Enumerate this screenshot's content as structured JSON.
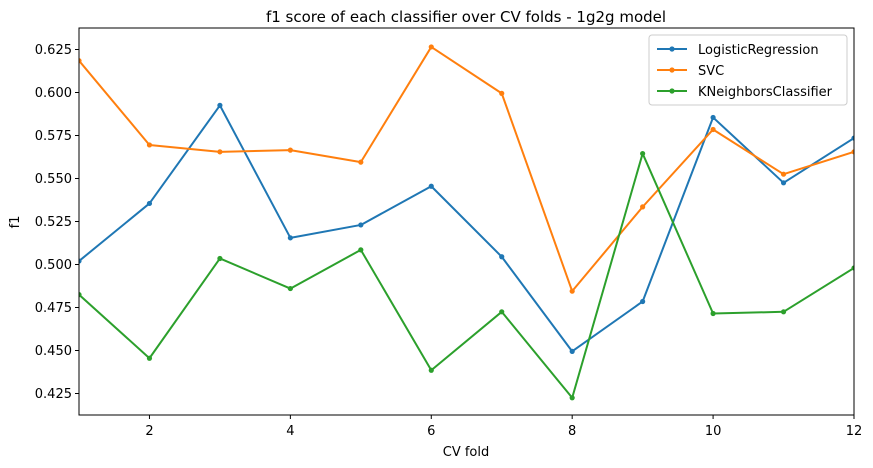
{
  "chart_data": {
    "type": "line",
    "title": "f1 score of each classifier over CV folds - 1g2g model",
    "xlabel": "CV fold",
    "ylabel": "f1",
    "xlim": [
      1,
      12
    ],
    "ylim": [
      0.4125,
      0.6375
    ],
    "xticks": [
      2,
      4,
      6,
      8,
      10,
      12
    ],
    "xtick_labels": [
      "2",
      "4",
      "6",
      "8",
      "10",
      "12"
    ],
    "yticks": [
      0.425,
      0.45,
      0.475,
      0.5,
      0.525,
      0.55,
      0.575,
      0.6,
      0.625
    ],
    "ytick_labels": [
      "0.425",
      "0.450",
      "0.475",
      "0.500",
      "0.525",
      "0.550",
      "0.575",
      "0.600",
      "0.625"
    ],
    "grid": false,
    "legend_position": "top-right",
    "x": [
      1,
      2,
      3,
      4,
      5,
      6,
      7,
      8,
      9,
      10,
      11,
      12
    ],
    "series": [
      {
        "name": "LogisticRegression",
        "color": "#1f77b4",
        "values": [
          0.502,
          0.5355,
          0.5925,
          0.5155,
          0.523,
          0.5455,
          0.5045,
          0.4495,
          0.4785,
          0.5855,
          0.5475,
          0.5735
        ]
      },
      {
        "name": "SVC",
        "color": "#ff7f0e",
        "values": [
          0.6185,
          0.5695,
          0.5655,
          0.5665,
          0.5595,
          0.6265,
          0.5995,
          0.4845,
          0.5335,
          0.5785,
          0.5525,
          0.5655
        ]
      },
      {
        "name": "KNeighborsClassifier",
        "color": "#2ca02c",
        "values": [
          0.4825,
          0.4455,
          0.5035,
          0.486,
          0.5085,
          0.4385,
          0.4725,
          0.4225,
          0.5645,
          0.4715,
          0.4725,
          0.498
        ]
      }
    ]
  }
}
